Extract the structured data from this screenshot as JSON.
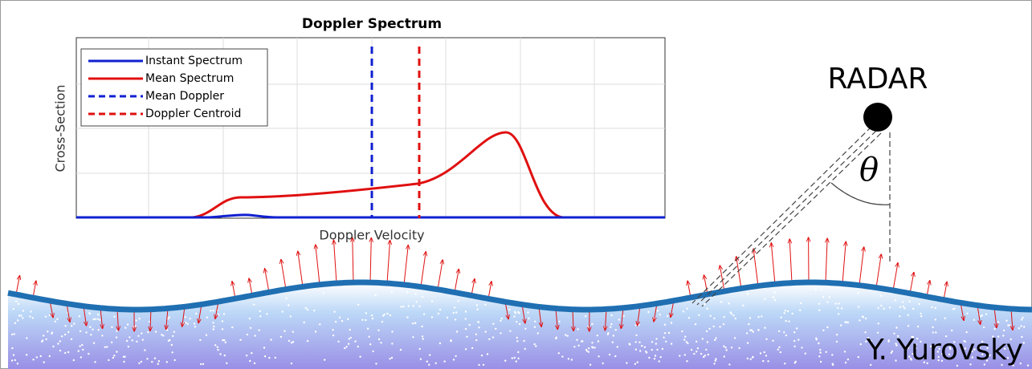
{
  "chart": {
    "title": "Doppler Spectrum",
    "x_label": "Doppler Velocity",
    "y_label": "Cross-Section",
    "legend": [
      "Instant Spectrum",
      "Mean Spectrum",
      "Mean Doppler",
      "Doppler Centroid"
    ]
  },
  "radar_label": "RADAR",
  "angle_label": "θ",
  "credit": "Y. Yurovsky"
}
